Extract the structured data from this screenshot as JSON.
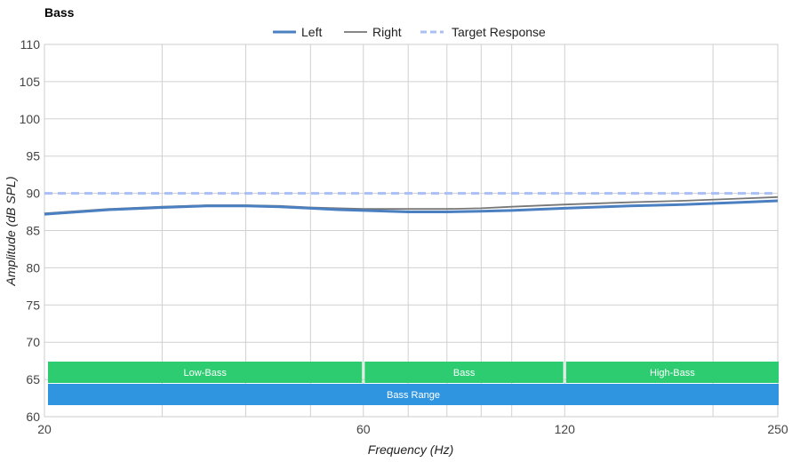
{
  "chart_data": {
    "type": "line",
    "title": "Bass",
    "xlabel": "Frequency (Hz)",
    "ylabel": "Amplitude (dB SPL)",
    "x_scale": "log",
    "xlim": [
      20,
      250
    ],
    "ylim": [
      60,
      110
    ],
    "x_ticks": [
      "20",
      "60",
      "120",
      "250"
    ],
    "y_ticks": [
      "60",
      "65",
      "70",
      "75",
      "80",
      "85",
      "90",
      "95",
      "100",
      "105",
      "110"
    ],
    "grid": true,
    "legend_position": "top-center",
    "series": [
      {
        "name": "Left",
        "color": "#4a7fc1",
        "style": "solid",
        "x": [
          20,
          25,
          30,
          35,
          40,
          45,
          50,
          55,
          60,
          70,
          80,
          90,
          100,
          120,
          150,
          180,
          220,
          250
        ],
        "y": [
          87.2,
          87.8,
          88.1,
          88.3,
          88.3,
          88.2,
          88.0,
          87.8,
          87.7,
          87.5,
          87.5,
          87.6,
          87.7,
          88.0,
          88.3,
          88.5,
          88.8,
          89.0
        ]
      },
      {
        "name": "Right",
        "color": "#777777",
        "style": "solid",
        "x": [
          20,
          25,
          30,
          35,
          40,
          45,
          50,
          55,
          60,
          70,
          80,
          90,
          100,
          120,
          150,
          180,
          220,
          250
        ],
        "y": [
          87.3,
          87.9,
          88.2,
          88.4,
          88.4,
          88.3,
          88.1,
          88.0,
          87.9,
          87.9,
          87.9,
          88.0,
          88.2,
          88.5,
          88.8,
          89.0,
          89.3,
          89.5
        ]
      },
      {
        "name": "Target Response",
        "color": "#a9bff5",
        "style": "dashed",
        "x": [
          20,
          250
        ],
        "y": [
          90,
          90
        ]
      }
    ],
    "bands": [
      {
        "label": "Low-Bass",
        "from": 20,
        "to": 60,
        "color": "#2ecc71"
      },
      {
        "label": "Bass",
        "from": 60,
        "to": 120,
        "color": "#2ecc71"
      },
      {
        "label": "High-Bass",
        "from": 120,
        "to": 250,
        "color": "#2ecc71"
      },
      {
        "label": "Bass Range",
        "from": 20,
        "to": 250,
        "color": "#2f95e0"
      }
    ]
  }
}
